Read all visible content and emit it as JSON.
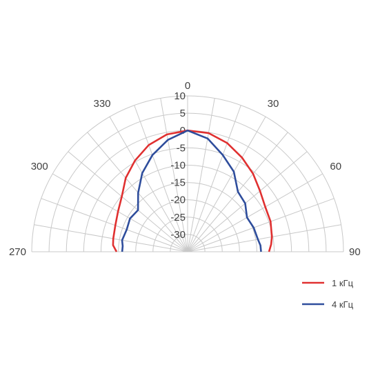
{
  "chart_data": {
    "type": "polar-line",
    "title": "",
    "angle_range_deg": [
      -90,
      90
    ],
    "angle_step_deg": 10,
    "angle_tick_labels": [
      {
        "angle": 0,
        "text": "0"
      },
      {
        "angle": 30,
        "text": "30"
      },
      {
        "angle": 60,
        "text": "60"
      },
      {
        "angle": 90,
        "text": "90"
      },
      {
        "angle": -30,
        "text": "330"
      },
      {
        "angle": -60,
        "text": "300"
      },
      {
        "angle": -90,
        "text": "270"
      }
    ],
    "radial_range": [
      -35,
      10
    ],
    "radial_ticks": [
      10,
      5,
      0,
      -5,
      -10,
      -15,
      -20,
      -25,
      -30
    ],
    "radial_tick_labels": [
      "10",
      "5",
      "0",
      "-5",
      "-10",
      "-15",
      "-20",
      "-25",
      "-30"
    ],
    "grid": true,
    "legend_position": "bottom-right",
    "series": [
      {
        "name": "1 кГц",
        "color": "#e03030",
        "points": [
          {
            "angle": -90,
            "value": -14.5
          },
          {
            "angle": -85,
            "value": -13.4
          },
          {
            "angle": -80,
            "value": -13.2
          },
          {
            "angle": -70,
            "value": -12.8
          },
          {
            "angle": -60,
            "value": -11.8
          },
          {
            "angle": -50,
            "value": -10.2
          },
          {
            "angle": -40,
            "value": -7.2
          },
          {
            "angle": -30,
            "value": -4.6
          },
          {
            "angle": -20,
            "value": -2.2
          },
          {
            "angle": -10,
            "value": -0.6
          },
          {
            "angle": 0,
            "value": 0
          },
          {
            "angle": 10,
            "value": -0.2
          },
          {
            "angle": 20,
            "value": -1.6
          },
          {
            "angle": 30,
            "value": -3.6
          },
          {
            "angle": 40,
            "value": -5.6
          },
          {
            "angle": 50,
            "value": -7.7
          },
          {
            "angle": 60,
            "value": -9.1
          },
          {
            "angle": 70,
            "value": -9.5
          },
          {
            "angle": 80,
            "value": -10.3
          },
          {
            "angle": 85,
            "value": -10.8
          },
          {
            "angle": 90,
            "value": -11.5
          }
        ]
      },
      {
        "name": "4 кГц",
        "color": "#2e4d9c",
        "points": [
          {
            "angle": -90,
            "value": -16.1
          },
          {
            "angle": -85,
            "value": -16.2
          },
          {
            "angle": -80,
            "value": -15.8
          },
          {
            "angle": -70,
            "value": -16.3
          },
          {
            "angle": -60,
            "value": -15.8
          },
          {
            "angle": -50,
            "value": -16.3
          },
          {
            "angle": -40,
            "value": -12.8
          },
          {
            "angle": -30,
            "value": -8.8
          },
          {
            "angle": -20,
            "value": -5.3
          },
          {
            "angle": -10,
            "value": -2.2
          },
          {
            "angle": 0,
            "value": 0
          },
          {
            "angle": 10,
            "value": -1.8
          },
          {
            "angle": 20,
            "value": -5.3
          },
          {
            "angle": 30,
            "value": -8.3
          },
          {
            "angle": 40,
            "value": -12.4
          },
          {
            "angle": 50,
            "value": -13.3
          },
          {
            "angle": 60,
            "value": -15.2
          },
          {
            "angle": 70,
            "value": -14.7
          },
          {
            "angle": 80,
            "value": -14.4
          },
          {
            "angle": 85,
            "value": -13.9
          },
          {
            "angle": 90,
            "value": -13.8
          }
        ]
      }
    ]
  }
}
